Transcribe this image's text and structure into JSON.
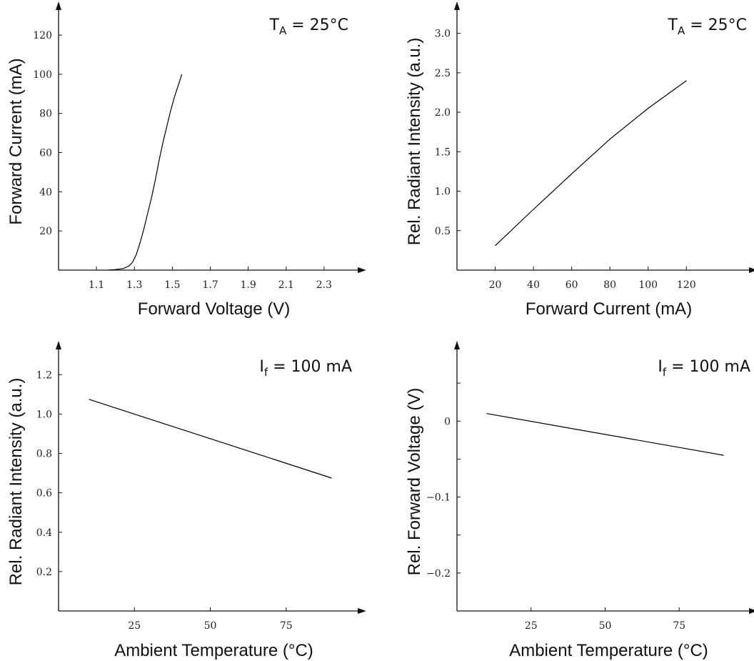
{
  "chart_data": [
    {
      "id": "iv",
      "type": "line",
      "xlabel": "Forward Voltage (V)",
      "ylabel": "Forward Current (mA)",
      "annotation": {
        "main": "T",
        "sub": "A",
        "rest": " = 25°C"
      },
      "xlim": [
        0.9,
        2.5
      ],
      "ylim": [
        0,
        135
      ],
      "xticks": [
        1.1,
        1.3,
        1.5,
        1.7,
        1.9,
        2.1,
        2.3
      ],
      "xtick_labels": [
        "1.1",
        "1.3",
        "1.5",
        "1.7",
        "1.9",
        "2.1",
        "2.3"
      ],
      "yticks": [
        20,
        40,
        60,
        80,
        100,
        120
      ],
      "ytick_labels": [
        "20",
        "40",
        "60",
        "80",
        "100",
        "120"
      ],
      "grid": false,
      "series": [
        {
          "x": [
            1.16,
            1.2,
            1.24,
            1.27,
            1.29,
            1.31,
            1.33,
            1.35,
            1.37,
            1.39,
            1.41,
            1.43,
            1.45,
            1.47,
            1.49,
            1.51,
            1.53,
            1.55
          ],
          "y": [
            0,
            0.3,
            0.8,
            2,
            4,
            8,
            14,
            21,
            29,
            37,
            46,
            56,
            65,
            73,
            81,
            88,
            94,
            100
          ]
        }
      ]
    },
    {
      "id": "ie-if",
      "type": "line",
      "xlabel": "Forward Current (mA)",
      "ylabel": "Rel. Radiant Intensity (a.u.)",
      "annotation": {
        "main": "T",
        "sub": "A",
        "rest": " = 25°C"
      },
      "xlim": [
        0,
        155
      ],
      "ylim": [
        0,
        3.35
      ],
      "xticks": [
        20,
        40,
        60,
        80,
        100,
        120
      ],
      "xtick_labels": [
        "20",
        "40",
        "60",
        "80",
        "100",
        "120"
      ],
      "yticks": [
        0.5,
        1.0,
        1.5,
        2.0,
        2.5,
        3.0
      ],
      "ytick_labels": [
        "0.5",
        "1.0",
        "1.5",
        "2.0",
        "2.5",
        "3.0"
      ],
      "grid": false,
      "series": [
        {
          "x": [
            20,
            40,
            60,
            80,
            100,
            120
          ],
          "y": [
            0.31,
            0.77,
            1.22,
            1.66,
            2.05,
            2.4
          ]
        }
      ]
    },
    {
      "id": "ie-temp",
      "type": "line",
      "xlabel": "Ambient Temperature (°C)",
      "ylabel": "Rel. Radiant Intensity (a.u.)",
      "annotation": {
        "main": "I",
        "sub": "f",
        "rest": " = 100 mA"
      },
      "xlim": [
        0,
        100
      ],
      "ylim": [
        0,
        1.35
      ],
      "xticks": [
        25,
        50,
        75
      ],
      "xtick_labels": [
        "25",
        "50",
        "75"
      ],
      "yticks": [
        0.2,
        0.4,
        0.6,
        0.8,
        1.0,
        1.2
      ],
      "ytick_labels": [
        "0.2",
        "0.4",
        "0.6",
        "0.8",
        "1.0",
        "1.2"
      ],
      "grid": false,
      "series": [
        {
          "x": [
            10,
            90
          ],
          "y": [
            1.075,
            0.675
          ]
        }
      ]
    },
    {
      "id": "vf-temp",
      "type": "line",
      "xlabel": "Ambient Temperature (°C)",
      "ylabel": "Rel. Forward Voltage (V)",
      "annotation": {
        "main": "I",
        "sub": "f",
        "rest": " = 100 mA"
      },
      "xlim": [
        0,
        100
      ],
      "ylim": [
        -0.25,
        0.1
      ],
      "xticks": [
        25,
        50,
        75
      ],
      "xtick_labels": [
        "25",
        "50",
        "75"
      ],
      "yticks": [
        0.05,
        0,
        -0.05,
        -0.1,
        -0.15,
        -0.2
      ],
      "ytick_labels": [
        "",
        "0",
        "",
        "−0.1",
        "",
        "−0.2"
      ],
      "grid": false,
      "series": [
        {
          "x": [
            10,
            90
          ],
          "y": [
            0.01,
            -0.045
          ]
        }
      ]
    }
  ]
}
